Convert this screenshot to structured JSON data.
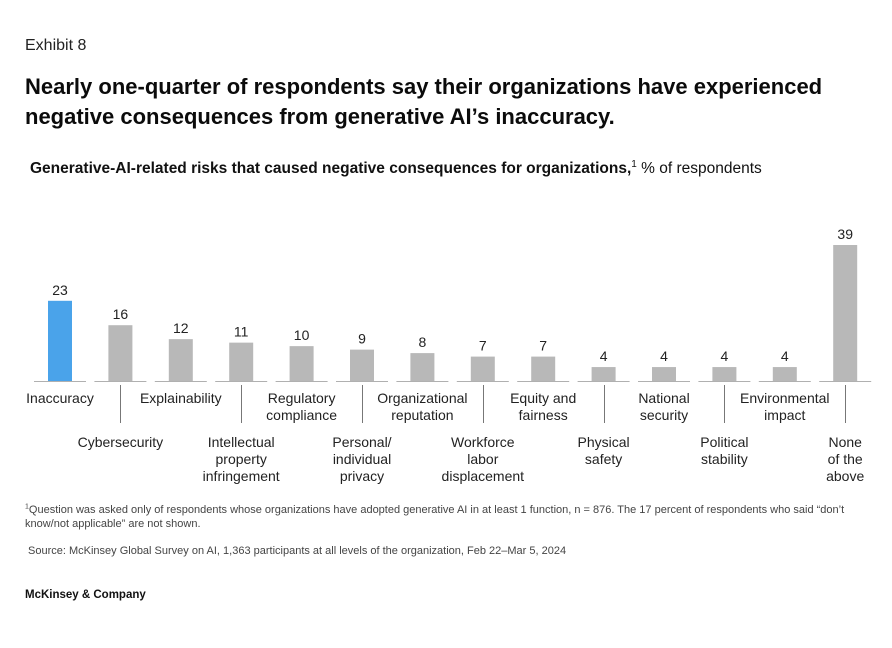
{
  "exhibit": "Exhibit 8",
  "headline": "Nearly one-quarter of respondents say their organizations have experienced negative consequences from generative AI’s inaccuracy.",
  "subtitle": {
    "bold": "Generative-AI-related risks that caused negative consequences for organizations,",
    "note_mark": "1",
    "unit": " % of respondents"
  },
  "chart_data": {
    "type": "bar",
    "title": "Generative-AI-related risks that caused negative consequences for organizations, % of respondents",
    "categories": [
      "Inaccuracy",
      "Cybersecurity",
      "Explainability",
      "Intellectual\nproperty\ninfringement",
      "Regulatory\ncompliance",
      "Personal/\nindividual\nprivacy",
      "Organizational\nreputation",
      "Workforce\nlabor\ndisplacement",
      "Equity and\nfairness",
      "Physical\nsafety",
      "National\nsecurity",
      "Political\nstability",
      "Environmental\nimpact",
      "None\nof the\nabove"
    ],
    "values": [
      23,
      16,
      12,
      11,
      10,
      9,
      8,
      7,
      7,
      4,
      4,
      4,
      4,
      39
    ],
    "highlight_index": 0,
    "colors": {
      "highlight": "#4aa3ea",
      "bar": "#b8b8b8",
      "baseline": "#b0b0b0",
      "leader": "#777777"
    },
    "ylim": [
      0,
      39
    ],
    "grid": false,
    "legend": "none"
  },
  "footnote": {
    "mark": "1",
    "text": "Question was asked only of respondents whose organizations have adopted generative AI in at least 1 function, n = 876. The 17 percent of respondents who said “don’t know/not applicable” are not shown."
  },
  "source": "Source: McKinsey Global Survey on AI, 1,363 participants at all levels of the organization, Feb 22–Mar 5, 2024",
  "brand": "McKinsey & Company"
}
